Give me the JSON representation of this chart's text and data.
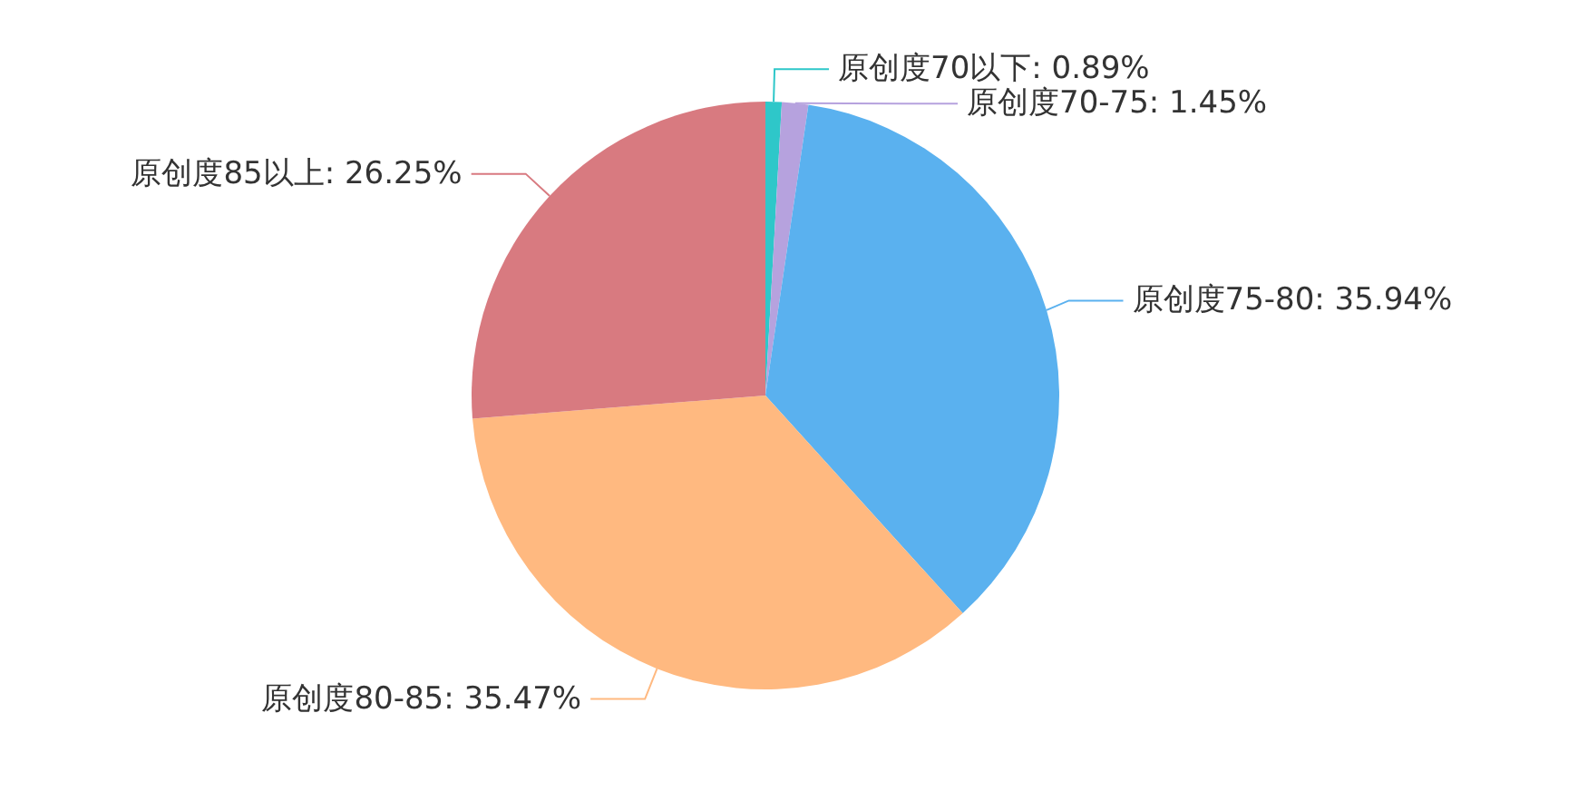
{
  "chart_data": {
    "type": "pie",
    "categories": [
      "原创度70以下",
      "原创度70-75",
      "原创度75-80",
      "原创度80-85",
      "原创度85以上"
    ],
    "values": [
      0.89,
      1.45,
      35.94,
      35.47,
      26.25
    ],
    "value_labels": [
      "0.89%",
      "1.45%",
      "35.94%",
      "35.47%",
      "26.25%"
    ],
    "colors": [
      "#2ec7c9",
      "#b6a2de",
      "#5ab1ef",
      "#ffb980",
      "#d87a80"
    ],
    "legend": false
  }
}
